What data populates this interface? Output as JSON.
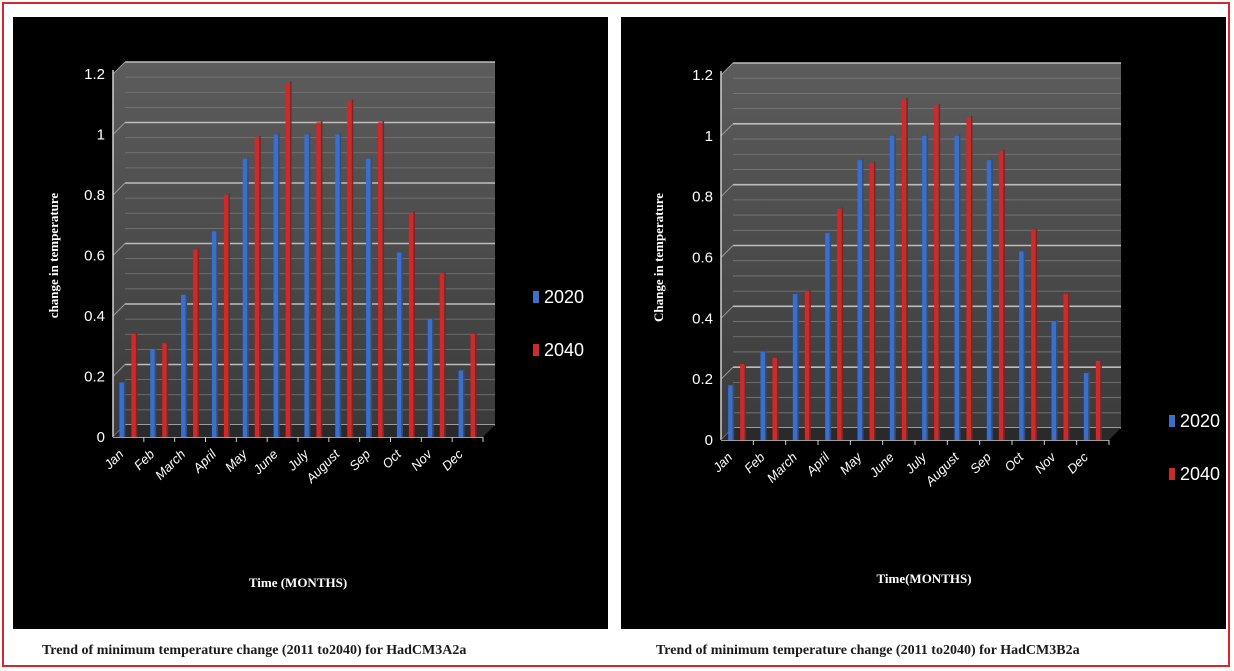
{
  "chart_data": [
    {
      "type": "bar",
      "title": "",
      "xlabel": "Time (MONTHS)",
      "ylabel": "change in temperature",
      "ylim": [
        0,
        1.2
      ],
      "yticks": [
        "0",
        "0.2",
        "0.4",
        "0.6",
        "0.8",
        "1",
        "1.2"
      ],
      "categories": [
        "Jan",
        "Feb",
        "March",
        "April",
        "May",
        "June",
        "July",
        "August",
        "Sep",
        "Oct",
        "Nov",
        "Dec"
      ],
      "series": [
        {
          "name": "2020",
          "color": "#3b6fc9",
          "values": [
            0.18,
            0.29,
            0.47,
            0.68,
            0.92,
            1.0,
            1.0,
            1.0,
            0.92,
            0.61,
            0.39,
            0.22
          ]
        },
        {
          "name": "2040",
          "color": "#cc2b2b",
          "values": [
            0.34,
            0.31,
            0.62,
            0.8,
            0.99,
            1.17,
            1.04,
            1.11,
            1.04,
            0.74,
            0.54,
            0.34
          ]
        }
      ],
      "legend_position": "right",
      "grid": true,
      "caption": "Trend of minimum temperature change (2011 to2040) for HadCM3A2a"
    },
    {
      "type": "bar",
      "title": "",
      "xlabel": "Time(MONTHS)",
      "ylabel": "Change in temperature",
      "ylim": [
        0,
        1.2
      ],
      "yticks": [
        "0",
        "0.2",
        "0.4",
        "0.6",
        "0.8",
        "1",
        "1.2"
      ],
      "categories": [
        "Jan",
        "Feb",
        "March",
        "April",
        "May",
        "June",
        "July",
        "August",
        "Sep",
        "Oct",
        "Nov",
        "Dec"
      ],
      "series": [
        {
          "name": "2020",
          "color": "#3b6fc9",
          "values": [
            0.18,
            0.29,
            0.48,
            0.68,
            0.92,
            1.0,
            1.0,
            1.0,
            0.92,
            0.62,
            0.39,
            0.22
          ]
        },
        {
          "name": "2040",
          "color": "#cc2b2b",
          "values": [
            0.25,
            0.27,
            0.49,
            0.76,
            0.91,
            1.12,
            1.1,
            1.06,
            0.95,
            0.69,
            0.48,
            0.26
          ]
        }
      ],
      "legend_position": "bottom-right",
      "grid": true,
      "caption": "Trend of minimum temperature change (2011 to2040) for HadCM3B2a"
    }
  ]
}
